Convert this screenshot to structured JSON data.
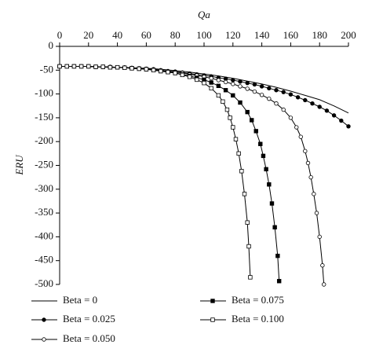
{
  "chart_data": {
    "type": "line",
    "x_label": "Qa",
    "y_label": "ERU",
    "xlim": [
      0,
      200
    ],
    "xticks": [
      0,
      20,
      40,
      60,
      80,
      100,
      120,
      140,
      160,
      180,
      200
    ],
    "ylim": [
      -500,
      0
    ],
    "yticks": [
      0,
      -50,
      -100,
      -150,
      -200,
      -250,
      -300,
      -350,
      -400,
      -450,
      -500
    ],
    "series": [
      {
        "name": "Beta = 0",
        "color": "#000000",
        "marker": "none",
        "x": [
          0,
          10,
          20,
          30,
          40,
          50,
          60,
          70,
          80,
          90,
          100,
          110,
          120,
          130,
          140,
          150,
          160,
          170,
          180,
          190,
          200
        ],
        "values": [
          -42,
          -42,
          -42,
          -43,
          -44,
          -45,
          -46,
          -48,
          -51,
          -54,
          -58,
          -62,
          -67,
          -73,
          -79,
          -86,
          -94,
          -103,
          -112,
          -125,
          -140
        ]
      },
      {
        "name": "Beta = 0.025",
        "color": "#000000",
        "marker": "circle-filled",
        "x": [
          0,
          5,
          10,
          15,
          20,
          25,
          30,
          35,
          40,
          45,
          50,
          55,
          60,
          65,
          70,
          75,
          80,
          85,
          90,
          95,
          100,
          105,
          110,
          115,
          120,
          125,
          130,
          135,
          140,
          145,
          150,
          155,
          160,
          165,
          170,
          175,
          180,
          185,
          190,
          195,
          200
        ],
        "values": [
          -42,
          -42,
          -42,
          -42,
          -42,
          -43,
          -43,
          -43,
          -44,
          -44,
          -45,
          -46,
          -47,
          -48,
          -50,
          -52,
          -53,
          -55,
          -57,
          -59,
          -61,
          -63,
          -66,
          -68,
          -71,
          -74,
          -77,
          -80,
          -84,
          -88,
          -92,
          -96,
          -101,
          -107,
          -113,
          -120,
          -127,
          -135,
          -145,
          -156,
          -168
        ]
      },
      {
        "name": "Beta = 0.050",
        "color": "#000000",
        "marker": "circle-open",
        "x": [
          0,
          5,
          10,
          15,
          20,
          25,
          30,
          35,
          40,
          45,
          50,
          55,
          60,
          65,
          70,
          75,
          80,
          85,
          90,
          95,
          100,
          105,
          110,
          115,
          120,
          125,
          130,
          135,
          140,
          145,
          150,
          155,
          160,
          164,
          167,
          170,
          172,
          174,
          176,
          178,
          180,
          182,
          183
        ],
        "values": [
          -42,
          -42,
          -42,
          -42,
          -42,
          -43,
          -43,
          -43,
          -44,
          -45,
          -46,
          -47,
          -48,
          -49,
          -51,
          -53,
          -54,
          -56,
          -59,
          -61,
          -64,
          -67,
          -71,
          -75,
          -79,
          -84,
          -89,
          -95,
          -102,
          -110,
          -120,
          -133,
          -150,
          -170,
          -190,
          -220,
          -245,
          -275,
          -310,
          -350,
          -400,
          -460,
          -500
        ]
      },
      {
        "name": "Beta = 0.075",
        "color": "#000000",
        "marker": "square-filled",
        "x": [
          0,
          5,
          10,
          15,
          20,
          25,
          30,
          35,
          40,
          45,
          50,
          55,
          60,
          65,
          70,
          75,
          80,
          85,
          90,
          95,
          100,
          105,
          110,
          115,
          120,
          125,
          130,
          133,
          136,
          139,
          141,
          143,
          145,
          147,
          149,
          151,
          152
        ],
        "values": [
          -42,
          -42,
          -42,
          -42,
          -42,
          -43,
          -43,
          -44,
          -44,
          -45,
          -46,
          -47,
          -48,
          -50,
          -52,
          -54,
          -56,
          -59,
          -62,
          -66,
          -70,
          -76,
          -83,
          -92,
          -103,
          -118,
          -138,
          -155,
          -178,
          -205,
          -230,
          -258,
          -290,
          -330,
          -380,
          -440,
          -493
        ]
      },
      {
        "name": "Beta = 0.100",
        "color": "#000000",
        "marker": "square-open",
        "x": [
          0,
          5,
          10,
          15,
          20,
          25,
          30,
          35,
          40,
          45,
          50,
          55,
          60,
          65,
          70,
          75,
          80,
          85,
          90,
          95,
          100,
          105,
          110,
          113,
          116,
          118,
          120,
          122,
          124,
          126,
          128,
          130,
          131,
          132
        ],
        "values": [
          -42,
          -42,
          -42,
          -42,
          -42,
          -43,
          -43,
          -44,
          -44,
          -45,
          -46,
          -47,
          -48,
          -50,
          -52,
          -54,
          -56,
          -60,
          -64,
          -70,
          -77,
          -88,
          -103,
          -116,
          -133,
          -150,
          -170,
          -195,
          -225,
          -262,
          -310,
          -370,
          -420,
          -485
        ]
      }
    ]
  }
}
